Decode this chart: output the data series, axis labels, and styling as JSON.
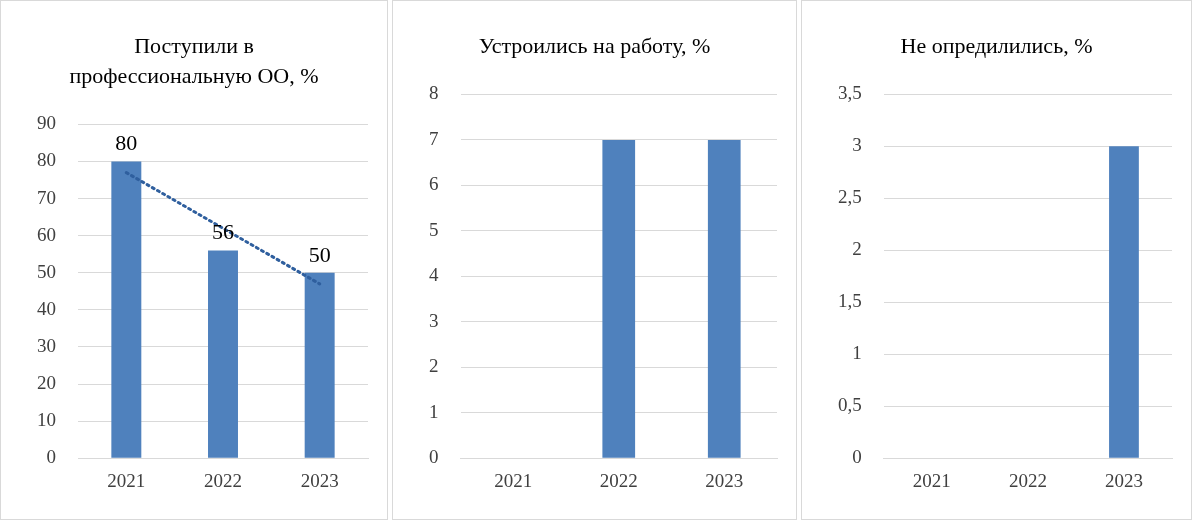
{
  "chart_data": [
    {
      "type": "bar",
      "title": "Поступили в профессиональную ОО, %",
      "categories": [
        "2021",
        "2022",
        "2023"
      ],
      "values": [
        80,
        56,
        50
      ],
      "color": "#4f81bd",
      "ylim": [
        0,
        90
      ],
      "yticks": [
        0,
        10,
        20,
        30,
        40,
        50,
        60,
        70,
        80,
        90
      ],
      "grid": "y",
      "value_labels": [
        "80",
        "56",
        "50"
      ],
      "series": [
        {
          "type": "line",
          "values": [
            77,
            62,
            47
          ],
          "color": "#2f5f9e",
          "line_style": "dotted",
          "marker": "none"
        }
      ]
    },
    {
      "type": "bar",
      "title": "Устроились на работу, %",
      "categories": [
        "2021",
        "2022",
        "2023"
      ],
      "values": [
        0,
        7,
        7
      ],
      "color": "#4f81bd",
      "ylim": [
        0,
        8
      ],
      "yticks": [
        0,
        1,
        2,
        3,
        4,
        5,
        6,
        7,
        8
      ],
      "grid": "y"
    },
    {
      "type": "bar",
      "title": "Не опредилились, %",
      "categories": [
        "2021",
        "2022",
        "2023"
      ],
      "values": [
        0,
        0,
        3
      ],
      "color": "#4f81bd",
      "ylim": [
        0,
        3.5
      ],
      "yticks": [
        0,
        {
          "value": 0.5,
          "label": "0,5"
        },
        1,
        {
          "value": 1.5,
          "label": "1,5"
        },
        2,
        {
          "value": 2.5,
          "label": "2,5"
        },
        3,
        {
          "value": 3.5,
          "label": "3,5"
        }
      ],
      "grid": "y"
    }
  ]
}
